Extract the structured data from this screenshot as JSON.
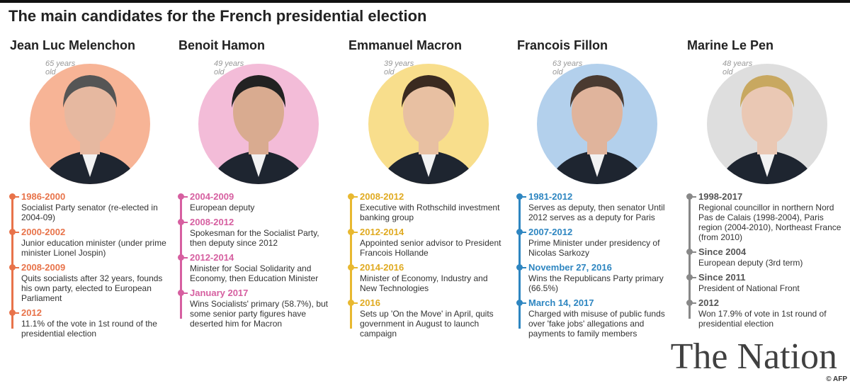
{
  "header": {
    "title": "The main candidates for the French presidential election"
  },
  "candidates": [
    {
      "name": "Jean Luc Melenchon",
      "age": "65 years old",
      "timeline": [
        {
          "period": "1986-2000",
          "text": "Socialist Party senator (re-elected in 2004-09)"
        },
        {
          "period": "2000-2002",
          "text": "Junior education minister (under prime minister Lionel Jospin)"
        },
        {
          "period": "2008-2009",
          "text": "Quits socialists after 32 years, founds his own party, elected to European Parliament"
        },
        {
          "period": "2012",
          "text": "11.1% of the vote in 1st round of the presidential election"
        }
      ]
    },
    {
      "name": "Benoit Hamon",
      "age": "49 years old",
      "timeline": [
        {
          "period": "2004-2009",
          "text": "European deputy"
        },
        {
          "period": "2008-2012",
          "text": "Spokesman for the Socialist Party, then deputy since 2012"
        },
        {
          "period": "2012-2014",
          "text": "Minister for Social Solidarity and Economy, then Education Minister"
        },
        {
          "period": "January 2017",
          "text": "Wins Socialists' primary (58.7%), but some senior party figures have deserted him for Macron"
        }
      ]
    },
    {
      "name": "Emmanuel Macron",
      "age": "39 years old",
      "timeline": [
        {
          "period": "2008-2012",
          "text": "Executive with Rothschild investment banking group"
        },
        {
          "period": "2012-2014",
          "text": "Appointed senior advisor to President Francois Hollande"
        },
        {
          "period": "2014-2016",
          "text": "Minister of Economy, Industry and New Technologies"
        },
        {
          "period": "2016",
          "text": "Sets up 'On the Move' in April, quits government in August to launch campaign"
        }
      ]
    },
    {
      "name": "Francois Fillon",
      "age": "63 years old",
      "timeline": [
        {
          "period": "1981-2012",
          "text": "Serves as deputy, then senator Until 2012 serves as a deputy for Paris"
        },
        {
          "period": "2007-2012",
          "text": "Prime Minister under presidency of Nicolas Sarkozy"
        },
        {
          "period": "November 27, 2016",
          "text": "Wins the Republicans Party primary (66.5%)"
        },
        {
          "period": "March 14, 2017",
          "text": "Charged with misuse of public funds over 'fake jobs' allegations and payments to family members"
        }
      ]
    },
    {
      "name": "Marine Le Pen",
      "age": "48 years old",
      "timeline": [
        {
          "period": "1998-2017",
          "text": "Regional councillor in northern Nord Pas de Calais (1998-2004), Paris region (2004-2010), Northeast France (from 2010)"
        },
        {
          "period": "Since 2004",
          "text": "European deputy (3rd term)"
        },
        {
          "period": "Since 2011",
          "text": "President of National Front"
        },
        {
          "period": "2012",
          "text": "Won 17.9% of vote in 1st round of presidential election"
        }
      ]
    }
  ],
  "watermark": "The Nation",
  "credit": "© AFP"
}
